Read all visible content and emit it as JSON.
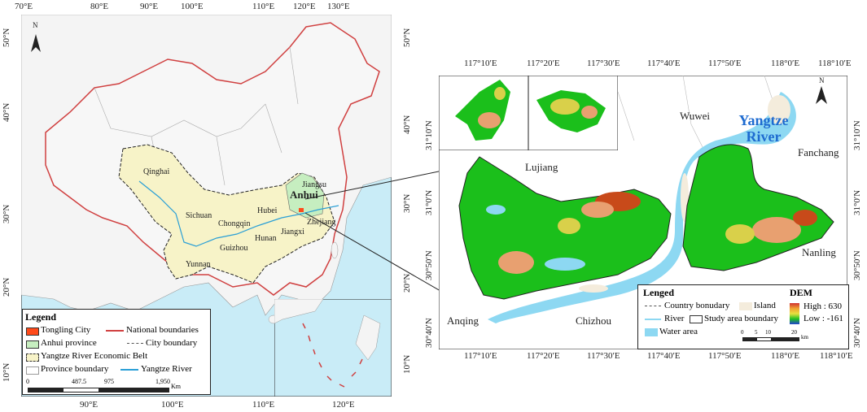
{
  "left_map": {
    "top_ticks": [
      "70°E",
      "80°E",
      "90°E",
      "100°E",
      "110°E",
      "120°E",
      "130°E"
    ],
    "bottom_ticks": [
      "90°E",
      "100°E",
      "110°E",
      "120°E"
    ],
    "left_ticks": [
      "50°N",
      "40°N",
      "30°N",
      "20°N",
      "10°N"
    ],
    "right_ticks": [
      "50°N",
      "40°N",
      "30°N",
      "20°N",
      "10°N"
    ],
    "north": "N",
    "regions": [
      "Qinghai",
      "Sichuan",
      "Chongqin",
      "Hubei",
      "Hunan",
      "Guizhou",
      "Yunnan",
      "Jiangxi",
      "Zhejiang",
      "Jiangsu",
      "Anhui"
    ],
    "legend": {
      "title": "Legend",
      "items": [
        "Tongling City",
        "National boundaries",
        "Anhui province",
        "City boundary",
        "Yangtze River Economic Belt",
        "Province boundary",
        "Yangtze River"
      ],
      "scale": [
        "0",
        "487.5",
        "975",
        "1,950"
      ],
      "scale_unit": "Km"
    }
  },
  "right_map": {
    "top_ticks": [
      "117°10′E",
      "117°20′E",
      "117°30′E",
      "117°40′E",
      "117°50′E",
      "118°0′E",
      "118°10′E"
    ],
    "bottom_ticks": [
      "117°10′E",
      "117°20′E",
      "117°30′E",
      "117°40′E",
      "117°50′E",
      "118°0′E",
      "118°10′E"
    ],
    "left_ticks": [
      "31°10′N",
      "31°0′N",
      "30°50′N",
      "30°40′N"
    ],
    "right_ticks": [
      "31°10′N",
      "31°0′N",
      "30°50′N",
      "30°40′N"
    ],
    "places": [
      "Wuwei",
      "Fanchang",
      "Lujiang",
      "Nanling",
      "Anqing",
      "Chizhou"
    ],
    "river_title": "Yangtze\nRiver",
    "north": "N",
    "legend": {
      "title": "Lenged",
      "items": [
        "Country bonudary",
        "Island",
        "River",
        "Study area boundary",
        "Water area"
      ],
      "dem_title": "DEM",
      "dem_high": "High : 630",
      "dem_low": "Low : -161",
      "scale": [
        "0",
        "5",
        "10",
        "20"
      ],
      "scale_unit": "km"
    }
  },
  "colors": {
    "river": "#5cc8f0",
    "land": "#1bbf1b",
    "belt": "#f7f3c8",
    "anhui": "#c6eec0",
    "boundary": "#d04040",
    "tongling": "#ff4a1a"
  }
}
